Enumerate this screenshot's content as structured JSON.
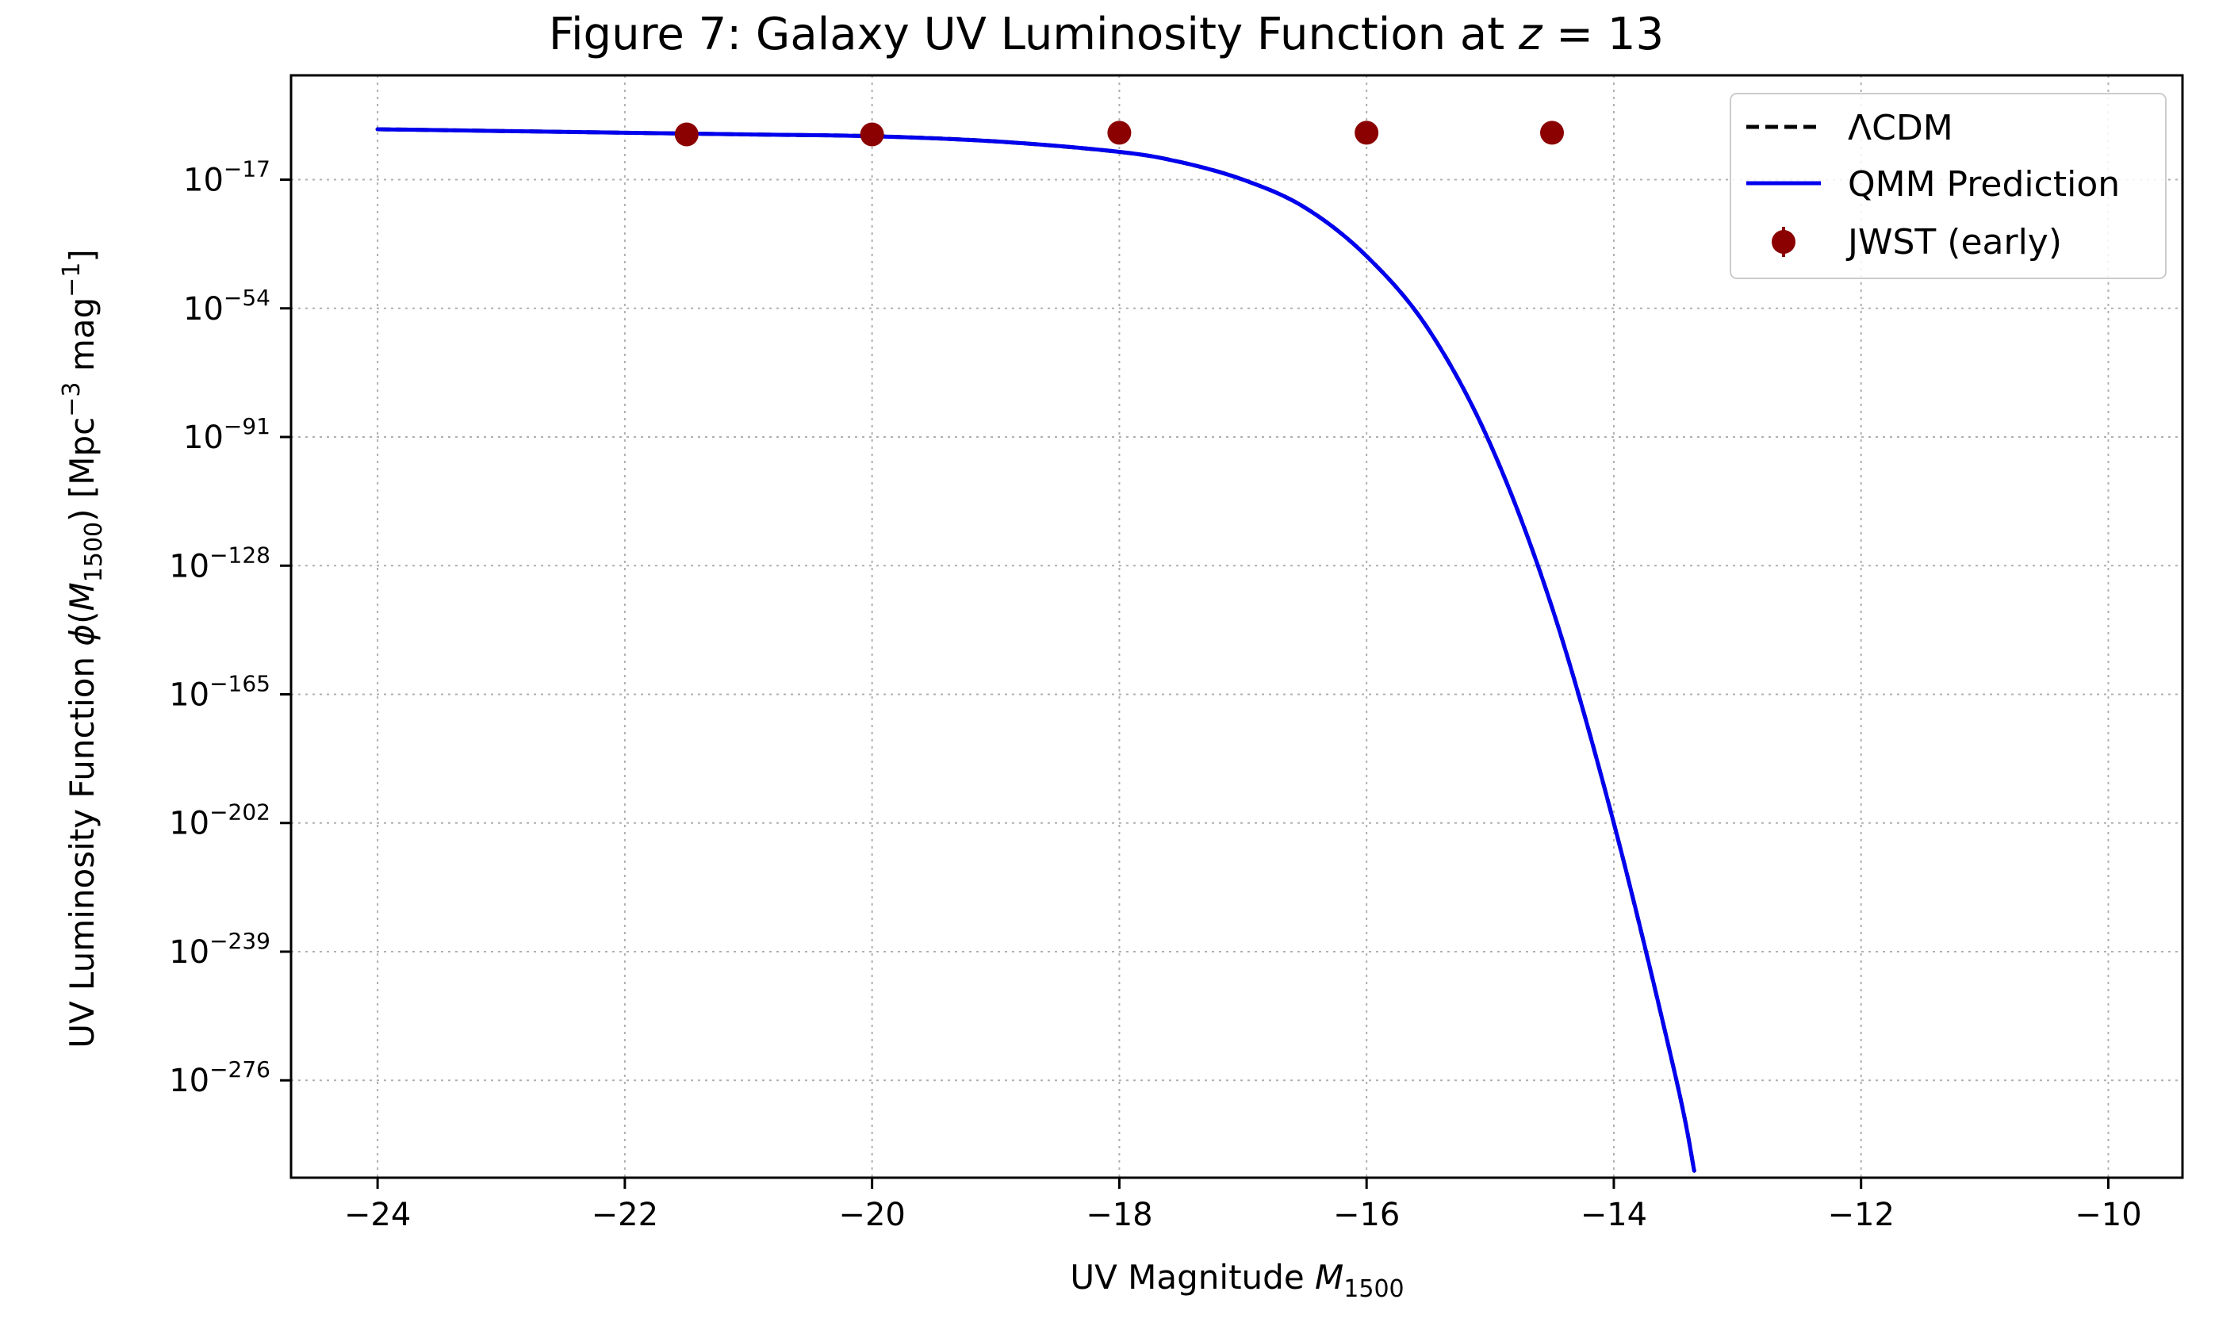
{
  "chart_data": {
    "type": "line",
    "title": "Figure 7: Galaxy UV Luminosity Function at z = 13",
    "title_parts": {
      "prefix": "Figure 7: Galaxy UV Luminosity Function at ",
      "var": "z",
      "suffix": " = 13"
    },
    "xlabel": "UV Magnitude M1500",
    "xlabel_parts": {
      "text": "UV Magnitude ",
      "var": "M",
      "sub": "1500"
    },
    "ylabel": "UV Luminosity Function φ(M1500) [Mpc⁻³ mag⁻¹]",
    "ylabel_parts": {
      "a": "UV Luminosity Function ",
      "phi": "ϕ",
      "b": "(",
      "var": "M",
      "sub": "1500",
      "c": ") [Mpc",
      "sup1": "−3",
      "d": " mag",
      "sup2": "−1",
      "e": "]"
    },
    "xlim": [
      -24.7,
      -9.4
    ],
    "ylim_log10": [
      -304,
      13
    ],
    "y_scale": "log",
    "grid": true,
    "legend_position": "top-right",
    "x_ticks": [
      -24,
      -22,
      -20,
      -18,
      -16,
      -14,
      -12,
      -10
    ],
    "x_tick_labels": [
      "−24",
      "−22",
      "−20",
      "−18",
      "−16",
      "−14",
      "−12",
      "−10"
    ],
    "y_ticks_log10": [
      -17,
      -54,
      -91,
      -128,
      -165,
      -202,
      -239,
      -276
    ],
    "y_tick_labels": [
      {
        "base": "10",
        "exp": "−17"
      },
      {
        "base": "10",
        "exp": "−54"
      },
      {
        "base": "10",
        "exp": "−91"
      },
      {
        "base": "10",
        "exp": "−128"
      },
      {
        "base": "10",
        "exp": "−165"
      },
      {
        "base": "10",
        "exp": "−202"
      },
      {
        "base": "10",
        "exp": "−239"
      },
      {
        "base": "10",
        "exp": "−276"
      }
    ],
    "series": [
      {
        "name": "ΛCDM",
        "style": "dashed",
        "color": "#000000",
        "x": [
          -24,
          -23,
          -22,
          -21,
          -20,
          -19,
          -18,
          -17.5,
          -17,
          -16.5,
          -16,
          -15.5,
          -15,
          -14.5,
          -14,
          -13.5,
          -13.35
        ],
        "log10_y": [
          -2.5,
          -3,
          -3.5,
          -4,
          -4.5,
          -6,
          -9,
          -12,
          -17,
          -25,
          -39,
          -60,
          -93,
          -140,
          -202,
          -275,
          -302
        ]
      },
      {
        "name": "QMM Prediction",
        "style": "solid",
        "color": "#0000ee",
        "x": [
          -24,
          -23,
          -22,
          -21,
          -20,
          -19,
          -18,
          -17.5,
          -17,
          -16.5,
          -16,
          -15.5,
          -15,
          -14.5,
          -14,
          -13.5,
          -13.35
        ],
        "log10_y": [
          -2.5,
          -3,
          -3.5,
          -4,
          -4.5,
          -6,
          -9,
          -12,
          -17,
          -25,
          -39,
          -60,
          -93,
          -140,
          -202,
          -275,
          -302
        ]
      }
    ],
    "points": {
      "name": "JWST (early)",
      "color": "#8b0000",
      "x": [
        -21.5,
        -20,
        -18,
        -16,
        -14.5
      ],
      "log10_y": [
        -4,
        -4,
        -3.5,
        -3.5,
        -3.5
      ]
    }
  }
}
